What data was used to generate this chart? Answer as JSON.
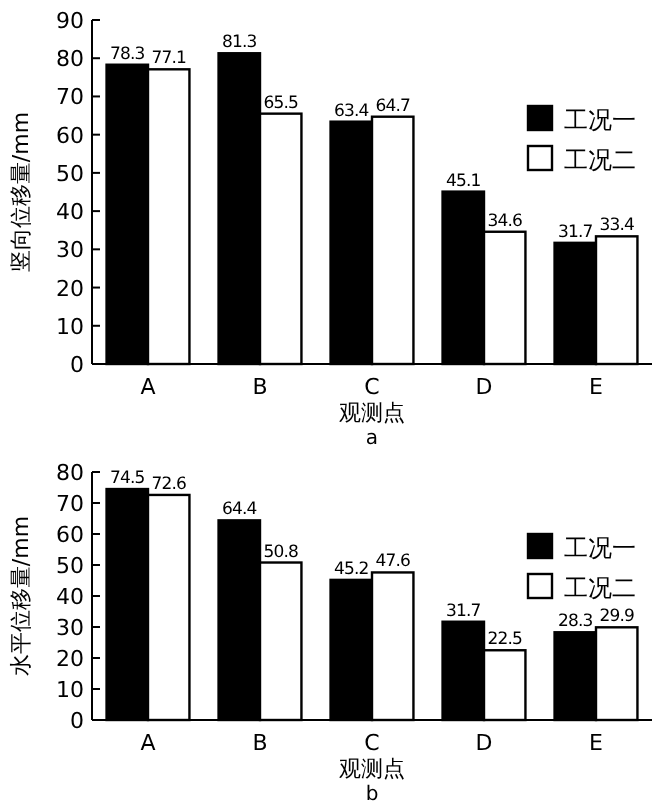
{
  "chart_data": [
    {
      "type": "bar",
      "categories": [
        "A",
        "B",
        "C",
        "D",
        "E"
      ],
      "series": [
        {
          "name": "工况一",
          "color": "#000000",
          "values": [
            78.3,
            81.3,
            63.4,
            45.1,
            31.7
          ]
        },
        {
          "name": "工况二",
          "color": "#ffffff",
          "values": [
            77.1,
            65.5,
            64.7,
            34.6,
            33.4
          ]
        }
      ],
      "ylim": [
        0,
        90
      ],
      "yticks": [
        0,
        10,
        20,
        30,
        40,
        50,
        60,
        70,
        80,
        90
      ],
      "ylabel": "竖向位移量/mm",
      "xlabel": "观测点",
      "annotations": [
        "a"
      ],
      "data_labels": true,
      "legend": "right"
    },
    {
      "type": "bar",
      "categories": [
        "A",
        "B",
        "C",
        "D",
        "E"
      ],
      "series": [
        {
          "name": "工况一",
          "color": "#000000",
          "values": [
            74.5,
            64.4,
            45.2,
            31.7,
            28.3
          ]
        },
        {
          "name": "工况二",
          "color": "#ffffff",
          "values": [
            72.6,
            50.8,
            47.6,
            22.5,
            29.9
          ]
        }
      ],
      "ylim": [
        0,
        80
      ],
      "yticks": [
        0,
        10,
        20,
        30,
        40,
        50,
        60,
        70,
        80
      ],
      "ylabel": "水平位移量/mm",
      "xlabel": "观测点",
      "annotations": [
        "b"
      ],
      "data_labels": true,
      "legend": "right"
    }
  ]
}
